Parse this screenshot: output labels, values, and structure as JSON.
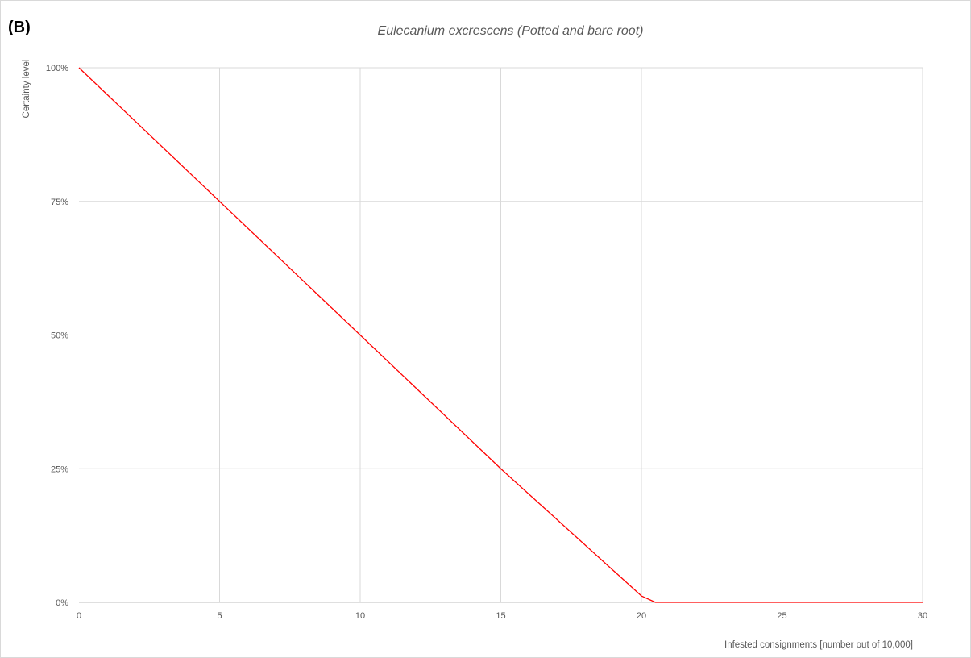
{
  "panel_label": "(B)",
  "chart_data": {
    "type": "line",
    "title": "Eulecanium excrescens (Potted and bare root)",
    "xlabel": "Infested consignments [number out of 10,000]",
    "ylabel": "Certainty level",
    "xlim": [
      0,
      30
    ],
    "ylim": [
      0,
      100
    ],
    "x_ticks": [
      0,
      5,
      10,
      15,
      20,
      25,
      30
    ],
    "x_tick_labels": [
      "0",
      "5",
      "10",
      "15",
      "20",
      "25",
      "30"
    ],
    "y_ticks": [
      0,
      25,
      50,
      75,
      100
    ],
    "y_tick_labels": [
      "0%",
      "25%",
      "50%",
      "75%",
      "100%"
    ],
    "grid": true,
    "series": [
      {
        "color": "#ff0000",
        "x": [
          0,
          5,
          10,
          15,
          20,
          20.5,
          25,
          30
        ],
        "y": [
          100,
          75,
          50,
          25,
          1.2,
          0,
          0,
          0
        ]
      }
    ]
  }
}
